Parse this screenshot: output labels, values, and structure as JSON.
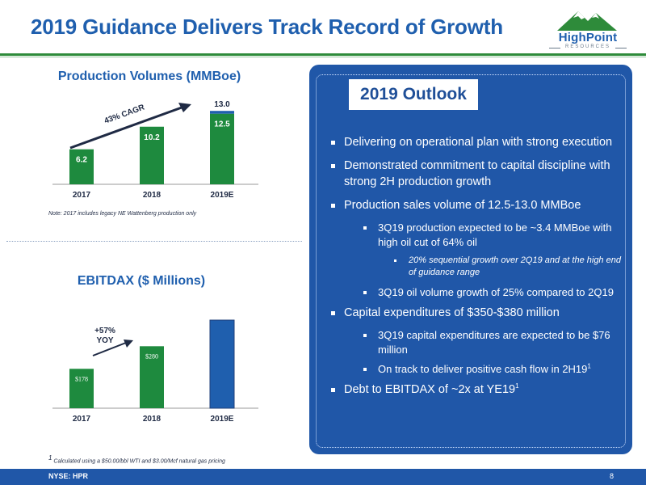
{
  "header": {
    "title": "2019 Guidance Delivers Track Record of Growth",
    "logo_name": "HighPoint",
    "logo_sub": "RESOURCES"
  },
  "colors": {
    "blue": "#1f5fae",
    "green": "#1e8a3e",
    "panel": "#2057a8"
  },
  "production": {
    "title": "Production Volumes (MMBoe)",
    "note": "Note: 2017 includes legacy NE Wattenberg production only",
    "cagr_label": "43% CAGR"
  },
  "ebitdax": {
    "title": "EBITDAX ($ Millions)",
    "yoy_line1": "+57%",
    "yoy_line2": "YOY"
  },
  "chart_data": [
    {
      "type": "bar",
      "title": "Production Volumes (MMBoe)",
      "categories": [
        "2017",
        "2018",
        "2019E"
      ],
      "values": [
        6.2,
        10.2,
        12.5
      ],
      "range_high": 13.0,
      "labels": [
        "6.2",
        "10.2",
        "12.5"
      ],
      "range_high_label": "13.0",
      "annotation": "43% CAGR",
      "ylim": [
        0,
        13.6
      ]
    },
    {
      "type": "bar",
      "title": "EBITDAX ($ Millions)",
      "categories": [
        "2017",
        "2018",
        "2019E"
      ],
      "values": [
        178,
        280,
        null
      ],
      "labels": [
        "$178",
        "$280",
        ""
      ],
      "annotation": "+57% YOY",
      "ylim": [
        0,
        398
      ]
    }
  ],
  "outlook": {
    "title": "2019 Outlook",
    "bullets": [
      {
        "level": 1,
        "text": "Delivering on operational plan with strong execution"
      },
      {
        "level": 1,
        "text": "Demonstrated commitment to capital discipline with strong 2H production growth"
      },
      {
        "level": 1,
        "text": "Production sales volume of 12.5-13.0 MMBoe"
      },
      {
        "level": 2,
        "text": "3Q19 production expected to be ~3.4 MMBoe with high oil cut of 64% oil"
      },
      {
        "level": 3,
        "text": "20% sequential growth over 2Q19 and at the high end of guidance range"
      },
      {
        "level": 2,
        "text": "3Q19 oil volume growth of 25% compared to 2Q19"
      },
      {
        "level": 1,
        "text": "Capital expenditures of $350-$380 million"
      },
      {
        "level": 2,
        "text": "3Q19 capital expenditures are expected to be $76 million"
      },
      {
        "level": 2,
        "text": "On track to deliver positive cash flow in 2H19",
        "sup": "1"
      },
      {
        "level": 1,
        "text": "Debt to EBITDAX of ~2x at YE19",
        "sup": "1"
      }
    ]
  },
  "footnote": {
    "sup": "1",
    "text": " Calculated using a $50.00/bbl WTI and $3.00/Mcf natural gas pricing"
  },
  "footer": {
    "ticker": "NYSE: HPR",
    "page": "8"
  }
}
